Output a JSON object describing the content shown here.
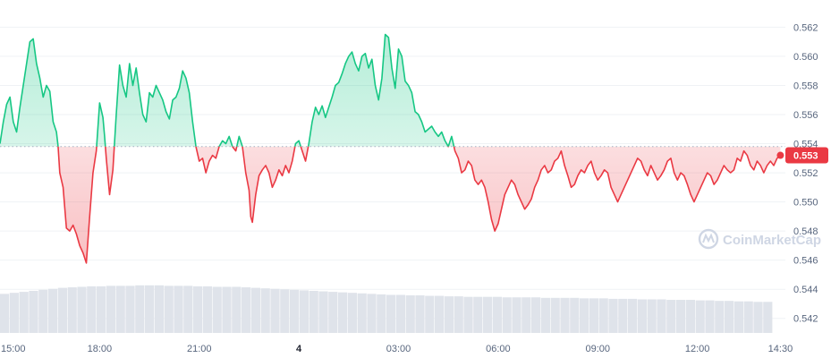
{
  "chart_data": {
    "type": "area",
    "baseline": 0.5538,
    "current_price_label": "0.553",
    "colors": {
      "up": "#16c784",
      "down": "#ea3943",
      "volume": "#dfe3ea",
      "grid": "#eff2f5",
      "baseline": "#a6b0c3"
    },
    "watermark": "CoinMarketCap",
    "ylim": [
      0.541,
      0.5635
    ],
    "y_ticks": [
      "0.542",
      "0.544",
      "0.546",
      "0.548",
      "0.550",
      "0.552",
      "0.554",
      "0.556",
      "0.558",
      "0.560",
      "0.562"
    ],
    "xlim": [
      15.0,
      38.65
    ],
    "x_ticks": [
      {
        "label": "15:00",
        "x": 15,
        "bold": false
      },
      {
        "label": "18:00",
        "x": 18,
        "bold": false
      },
      {
        "label": "21:00",
        "x": 21,
        "bold": false
      },
      {
        "label": "4",
        "x": 24,
        "bold": true
      },
      {
        "label": "03:00",
        "x": 27,
        "bold": false
      },
      {
        "label": "06:00",
        "x": 30,
        "bold": false
      },
      {
        "label": "09:00",
        "x": 33,
        "bold": false
      },
      {
        "label": "12:00",
        "x": 36,
        "bold": false
      },
      {
        "label": "14:30",
        "x": 38.5,
        "bold": false
      }
    ],
    "series": [
      {
        "type": "line",
        "points": [
          [
            15.0,
            0.554
          ],
          [
            15.1,
            0.5555
          ],
          [
            15.2,
            0.5567
          ],
          [
            15.3,
            0.5572
          ],
          [
            15.4,
            0.5555
          ],
          [
            15.5,
            0.5548
          ],
          [
            15.6,
            0.5565
          ],
          [
            15.7,
            0.558
          ],
          [
            15.8,
            0.5595
          ],
          [
            15.9,
            0.561
          ],
          [
            16.0,
            0.5612
          ],
          [
            16.1,
            0.5595
          ],
          [
            16.2,
            0.5585
          ],
          [
            16.3,
            0.5572
          ],
          [
            16.4,
            0.558
          ],
          [
            16.5,
            0.5576
          ],
          [
            16.6,
            0.5555
          ],
          [
            16.7,
            0.5548
          ],
          [
            16.75,
            0.5538
          ],
          [
            16.8,
            0.552
          ],
          [
            16.9,
            0.551
          ],
          [
            17.0,
            0.5482
          ],
          [
            17.1,
            0.548
          ],
          [
            17.2,
            0.5484
          ],
          [
            17.3,
            0.5478
          ],
          [
            17.4,
            0.547
          ],
          [
            17.5,
            0.5465
          ],
          [
            17.6,
            0.5458
          ],
          [
            17.7,
            0.549
          ],
          [
            17.8,
            0.552
          ],
          [
            17.9,
            0.5535
          ],
          [
            18.0,
            0.5568
          ],
          [
            18.1,
            0.5558
          ],
          [
            18.15,
            0.5545
          ],
          [
            18.2,
            0.553
          ],
          [
            18.3,
            0.5505
          ],
          [
            18.4,
            0.5522
          ],
          [
            18.5,
            0.556
          ],
          [
            18.6,
            0.5594
          ],
          [
            18.7,
            0.558
          ],
          [
            18.8,
            0.5572
          ],
          [
            18.9,
            0.5595
          ],
          [
            19.0,
            0.558
          ],
          [
            19.1,
            0.5592
          ],
          [
            19.2,
            0.5575
          ],
          [
            19.3,
            0.556
          ],
          [
            19.4,
            0.5555
          ],
          [
            19.5,
            0.5575
          ],
          [
            19.6,
            0.5572
          ],
          [
            19.7,
            0.558
          ],
          [
            19.8,
            0.5575
          ],
          [
            19.9,
            0.557
          ],
          [
            20.0,
            0.5562
          ],
          [
            20.1,
            0.5557
          ],
          [
            20.2,
            0.557
          ],
          [
            20.3,
            0.5572
          ],
          [
            20.4,
            0.5578
          ],
          [
            20.5,
            0.559
          ],
          [
            20.6,
            0.5585
          ],
          [
            20.7,
            0.5575
          ],
          [
            20.8,
            0.5555
          ],
          [
            20.9,
            0.5538
          ],
          [
            21.0,
            0.5528
          ],
          [
            21.1,
            0.553
          ],
          [
            21.2,
            0.552
          ],
          [
            21.3,
            0.5528
          ],
          [
            21.4,
            0.5532
          ],
          [
            21.5,
            0.553
          ],
          [
            21.6,
            0.5538
          ],
          [
            21.7,
            0.5542
          ],
          [
            21.8,
            0.554
          ],
          [
            21.9,
            0.5545
          ],
          [
            22.0,
            0.5538
          ],
          [
            22.1,
            0.5535
          ],
          [
            22.2,
            0.5545
          ],
          [
            22.3,
            0.5538
          ],
          [
            22.4,
            0.552
          ],
          [
            22.5,
            0.5508
          ],
          [
            22.55,
            0.549
          ],
          [
            22.6,
            0.5486
          ],
          [
            22.7,
            0.5505
          ],
          [
            22.8,
            0.5518
          ],
          [
            22.9,
            0.5522
          ],
          [
            23.0,
            0.5525
          ],
          [
            23.1,
            0.552
          ],
          [
            23.2,
            0.551
          ],
          [
            23.3,
            0.5515
          ],
          [
            23.4,
            0.5522
          ],
          [
            23.5,
            0.5518
          ],
          [
            23.6,
            0.5525
          ],
          [
            23.7,
            0.552
          ],
          [
            23.8,
            0.5528
          ],
          [
            23.9,
            0.554
          ],
          [
            24.0,
            0.5542
          ],
          [
            24.1,
            0.5535
          ],
          [
            24.2,
            0.5528
          ],
          [
            24.3,
            0.554
          ],
          [
            24.4,
            0.5555
          ],
          [
            24.5,
            0.5565
          ],
          [
            24.6,
            0.556
          ],
          [
            24.7,
            0.5566
          ],
          [
            24.8,
            0.5558
          ],
          [
            24.9,
            0.5565
          ],
          [
            25.0,
            0.5572
          ],
          [
            25.1,
            0.558
          ],
          [
            25.2,
            0.5582
          ],
          [
            25.3,
            0.5588
          ],
          [
            25.4,
            0.5595
          ],
          [
            25.5,
            0.56
          ],
          [
            25.6,
            0.5603
          ],
          [
            25.7,
            0.5595
          ],
          [
            25.8,
            0.559
          ],
          [
            25.9,
            0.56
          ],
          [
            26.0,
            0.5602
          ],
          [
            26.1,
            0.5592
          ],
          [
            26.2,
            0.5598
          ],
          [
            26.3,
            0.558
          ],
          [
            26.4,
            0.557
          ],
          [
            26.5,
            0.5585
          ],
          [
            26.6,
            0.5615
          ],
          [
            26.7,
            0.5613
          ],
          [
            26.8,
            0.5592
          ],
          [
            26.9,
            0.5578
          ],
          [
            27.0,
            0.5605
          ],
          [
            27.1,
            0.56
          ],
          [
            27.2,
            0.5583
          ],
          [
            27.3,
            0.558
          ],
          [
            27.4,
            0.5575
          ],
          [
            27.5,
            0.5562
          ],
          [
            27.6,
            0.556
          ],
          [
            27.7,
            0.5555
          ],
          [
            27.8,
            0.5548
          ],
          [
            27.9,
            0.555
          ],
          [
            28.0,
            0.5552
          ],
          [
            28.1,
            0.5548
          ],
          [
            28.2,
            0.5545
          ],
          [
            28.3,
            0.5548
          ],
          [
            28.4,
            0.5542
          ],
          [
            28.5,
            0.5538
          ],
          [
            28.6,
            0.5545
          ],
          [
            28.7,
            0.5535
          ],
          [
            28.8,
            0.553
          ],
          [
            28.9,
            0.552
          ],
          [
            29.0,
            0.5522
          ],
          [
            29.1,
            0.5528
          ],
          [
            29.2,
            0.5525
          ],
          [
            29.3,
            0.5515
          ],
          [
            29.4,
            0.5512
          ],
          [
            29.5,
            0.5515
          ],
          [
            29.6,
            0.551
          ],
          [
            29.7,
            0.55
          ],
          [
            29.8,
            0.5488
          ],
          [
            29.9,
            0.548
          ],
          [
            30.0,
            0.5485
          ],
          [
            30.1,
            0.5495
          ],
          [
            30.2,
            0.5505
          ],
          [
            30.3,
            0.551
          ],
          [
            30.4,
            0.5515
          ],
          [
            30.5,
            0.5512
          ],
          [
            30.6,
            0.5505
          ],
          [
            30.7,
            0.55
          ],
          [
            30.8,
            0.5495
          ],
          [
            30.9,
            0.5498
          ],
          [
            31.0,
            0.5502
          ],
          [
            31.1,
            0.551
          ],
          [
            31.2,
            0.5515
          ],
          [
            31.3,
            0.5522
          ],
          [
            31.4,
            0.5525
          ],
          [
            31.5,
            0.552
          ],
          [
            31.6,
            0.5522
          ],
          [
            31.7,
            0.5528
          ],
          [
            31.8,
            0.553
          ],
          [
            31.9,
            0.5535
          ],
          [
            32.0,
            0.5525
          ],
          [
            32.1,
            0.5518
          ],
          [
            32.2,
            0.551
          ],
          [
            32.3,
            0.5512
          ],
          [
            32.4,
            0.5518
          ],
          [
            32.5,
            0.5522
          ],
          [
            32.6,
            0.552
          ],
          [
            32.7,
            0.5525
          ],
          [
            32.8,
            0.5528
          ],
          [
            32.9,
            0.552
          ],
          [
            33.0,
            0.5515
          ],
          [
            33.1,
            0.5518
          ],
          [
            33.2,
            0.5522
          ],
          [
            33.3,
            0.552
          ],
          [
            33.4,
            0.551
          ],
          [
            33.5,
            0.5505
          ],
          [
            33.6,
            0.55
          ],
          [
            33.7,
            0.5505
          ],
          [
            33.8,
            0.551
          ],
          [
            33.9,
            0.5515
          ],
          [
            34.0,
            0.552
          ],
          [
            34.1,
            0.5525
          ],
          [
            34.2,
            0.553
          ],
          [
            34.3,
            0.5528
          ],
          [
            34.4,
            0.5522
          ],
          [
            34.5,
            0.5518
          ],
          [
            34.6,
            0.5525
          ],
          [
            34.7,
            0.552
          ],
          [
            34.8,
            0.5515
          ],
          [
            34.9,
            0.5518
          ],
          [
            35.0,
            0.5522
          ],
          [
            35.1,
            0.5528
          ],
          [
            35.2,
            0.553
          ],
          [
            35.3,
            0.552
          ],
          [
            35.4,
            0.5515
          ],
          [
            35.5,
            0.552
          ],
          [
            35.6,
            0.5518
          ],
          [
            35.7,
            0.5512
          ],
          [
            35.8,
            0.5505
          ],
          [
            35.9,
            0.55
          ],
          [
            36.0,
            0.5505
          ],
          [
            36.1,
            0.551
          ],
          [
            36.2,
            0.5515
          ],
          [
            36.3,
            0.552
          ],
          [
            36.4,
            0.5518
          ],
          [
            36.5,
            0.5512
          ],
          [
            36.6,
            0.5515
          ],
          [
            36.7,
            0.552
          ],
          [
            36.8,
            0.5525
          ],
          [
            36.9,
            0.5522
          ],
          [
            37.0,
            0.552
          ],
          [
            37.1,
            0.5522
          ],
          [
            37.2,
            0.553
          ],
          [
            37.3,
            0.5528
          ],
          [
            37.4,
            0.5535
          ],
          [
            37.5,
            0.5532
          ],
          [
            37.6,
            0.5525
          ],
          [
            37.7,
            0.5522
          ],
          [
            37.8,
            0.5528
          ],
          [
            37.9,
            0.5525
          ],
          [
            38.0,
            0.552
          ],
          [
            38.1,
            0.5525
          ],
          [
            38.2,
            0.5528
          ],
          [
            38.3,
            0.5525
          ],
          [
            38.4,
            0.553
          ],
          [
            38.5,
            0.5532
          ]
        ]
      },
      {
        "type": "bar",
        "name": "volume",
        "range": [
          0,
          1
        ],
        "values": [
          0.78,
          0.8,
          0.82,
          0.84,
          0.86,
          0.88,
          0.9,
          0.91,
          0.92,
          0.93,
          0.93,
          0.94,
          0.94,
          0.94,
          0.95,
          0.95,
          0.95,
          0.94,
          0.94,
          0.94,
          0.93,
          0.93,
          0.92,
          0.92,
          0.92,
          0.91,
          0.9,
          0.89,
          0.88,
          0.87,
          0.86,
          0.85,
          0.84,
          0.83,
          0.82,
          0.81,
          0.8,
          0.79,
          0.78,
          0.77,
          0.76,
          0.76,
          0.75,
          0.75,
          0.74,
          0.74,
          0.73,
          0.73,
          0.72,
          0.72,
          0.72,
          0.72,
          0.71,
          0.71,
          0.71,
          0.71,
          0.7,
          0.7,
          0.7,
          0.7,
          0.69,
          0.69,
          0.69,
          0.68,
          0.68,
          0.68,
          0.67,
          0.67,
          0.67,
          0.66,
          0.66,
          0.66,
          0.65,
          0.65,
          0.64,
          0.64,
          0.63,
          0.63,
          0.62,
          0.62
        ]
      }
    ]
  }
}
